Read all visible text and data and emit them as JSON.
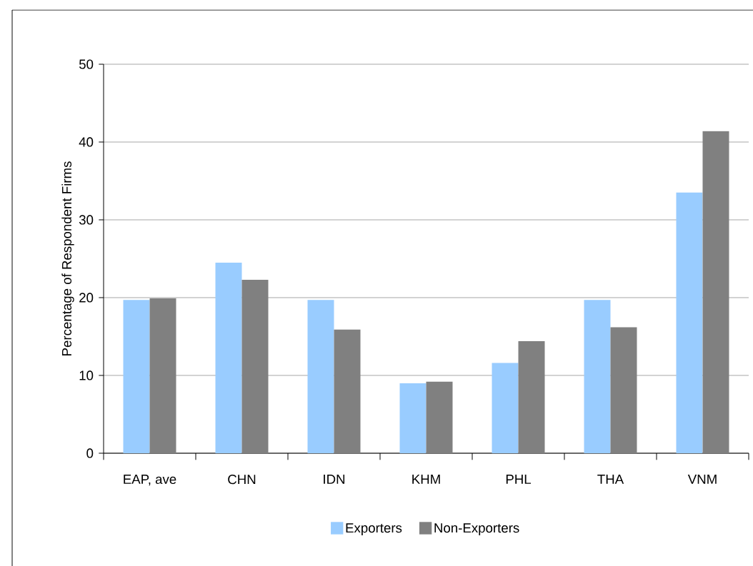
{
  "chart_data": {
    "type": "bar",
    "ylabel": "Percentage of Respondent Firms",
    "categories": [
      "EAP, ave",
      "CHN",
      "IDN",
      "KHM",
      "PHL",
      "THA",
      "VNM"
    ],
    "series": [
      {
        "name": "Exporters",
        "color": "#99ccff",
        "values": [
          19.7,
          24.5,
          19.7,
          9.0,
          11.6,
          19.7,
          33.5
        ]
      },
      {
        "name": "Non-Exporters",
        "color": "#808080",
        "values": [
          19.9,
          22.3,
          15.9,
          9.2,
          14.4,
          16.2,
          41.4
        ]
      }
    ],
    "ylim": [
      0,
      50
    ],
    "yticks": [
      0,
      10,
      20,
      30,
      40,
      50
    ],
    "grid": "y",
    "legend": "bottom"
  }
}
